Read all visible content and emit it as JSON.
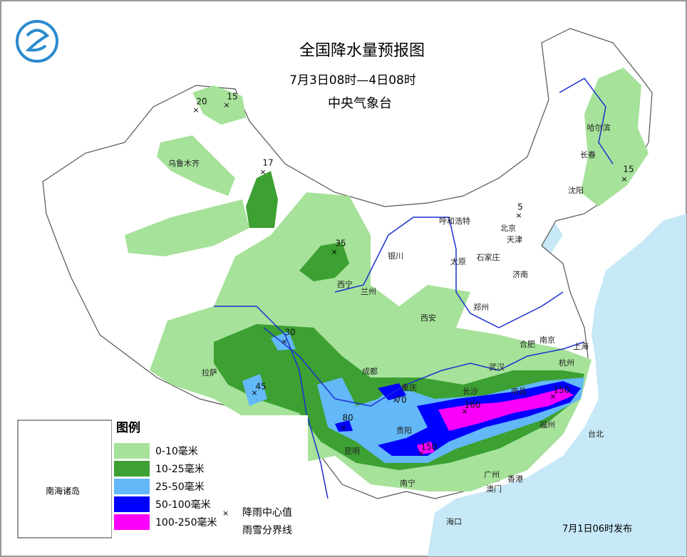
{
  "header": {
    "title": "全国降水量预报图",
    "period": "7月3日08时—4日08时",
    "issuer": "中央气象台"
  },
  "cities": [
    "乌鲁木齐",
    "哈尔滨",
    "长春",
    "沈阳",
    "呼和浩特",
    "北京",
    "天津",
    "银川",
    "太原",
    "石家庄",
    "济南",
    "西宁",
    "兰州",
    "郑州",
    "西安",
    "合肥",
    "南京",
    "上海",
    "武汉",
    "杭州",
    "成都",
    "重庆",
    "长沙",
    "南昌",
    "拉萨",
    "贵阳",
    "福州",
    "台北",
    "昆明",
    "南宁",
    "广州",
    "香港",
    "澳门",
    "海口"
  ],
  "rain_centers": [
    20,
    15,
    17,
    35,
    5,
    15,
    30,
    45,
    70,
    80,
    150,
    160,
    150
  ],
  "legend": {
    "title": "图例",
    "items": [
      {
        "label": "0-10毫米",
        "color": "#a6e29a"
      },
      {
        "label": "10-25毫米",
        "color": "#3ca032"
      },
      {
        "label": "25-50毫米",
        "color": "#63b8f8"
      },
      {
        "label": "50-100毫米",
        "color": "#0000fe"
      },
      {
        "label": "100-250毫米",
        "color": "#fa00fa"
      }
    ],
    "center_symbol": "降雨中心值",
    "snow_line": "雨雪分界线"
  },
  "inset": {
    "label": "南海诸岛"
  },
  "footer": {
    "issued": "7月1日06时发布"
  }
}
